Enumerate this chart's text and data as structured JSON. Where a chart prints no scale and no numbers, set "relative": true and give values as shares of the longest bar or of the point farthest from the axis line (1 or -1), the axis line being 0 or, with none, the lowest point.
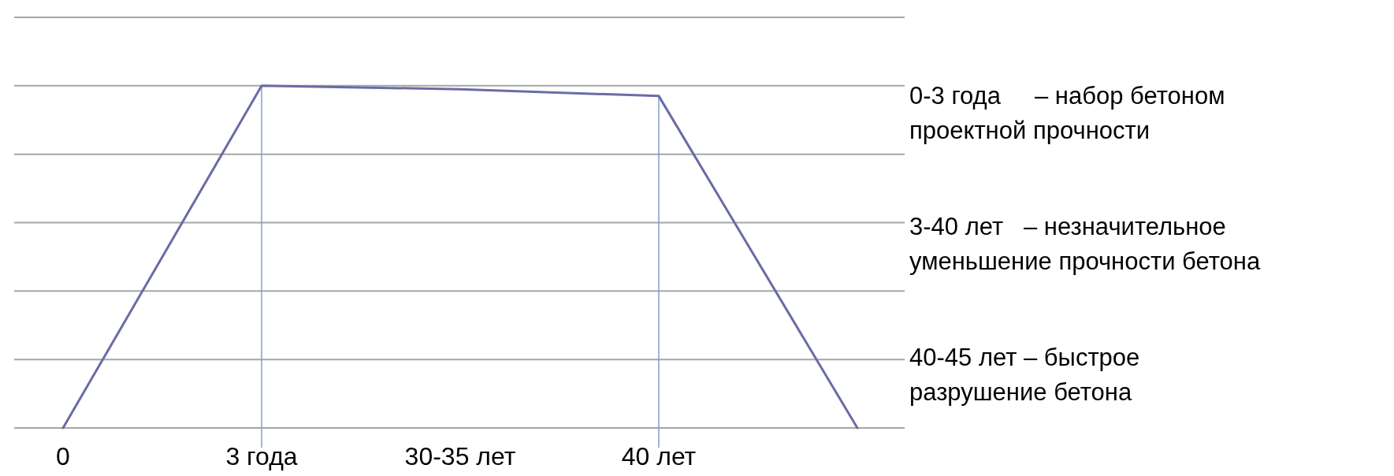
{
  "chart_data": {
    "type": "line",
    "relative": true,
    "categories": [
      "0",
      "3 года",
      "30-35 лет",
      "40 лет",
      null
    ],
    "series": [
      {
        "color": "#6a6ca6",
        "values": [
          0,
          1,
          0.99,
          0.97,
          0
        ]
      }
    ],
    "grid": "y",
    "marker": "none",
    "line_style": "solid",
    "ref_lines": [
      {
        "axis": "x",
        "value": "3 года",
        "color": "#7f9fd0"
      },
      {
        "axis": "x",
        "value": "40 лет",
        "color": "#7f9fd0"
      }
    ],
    "annotations": [
      "0-3 года     – набор бетоном\nпроектной прочности",
      "3-40 лет   – незначительное\nуменьшение прочности бетона",
      "40-45 лет – быстрое\nразрушение бетона"
    ]
  }
}
